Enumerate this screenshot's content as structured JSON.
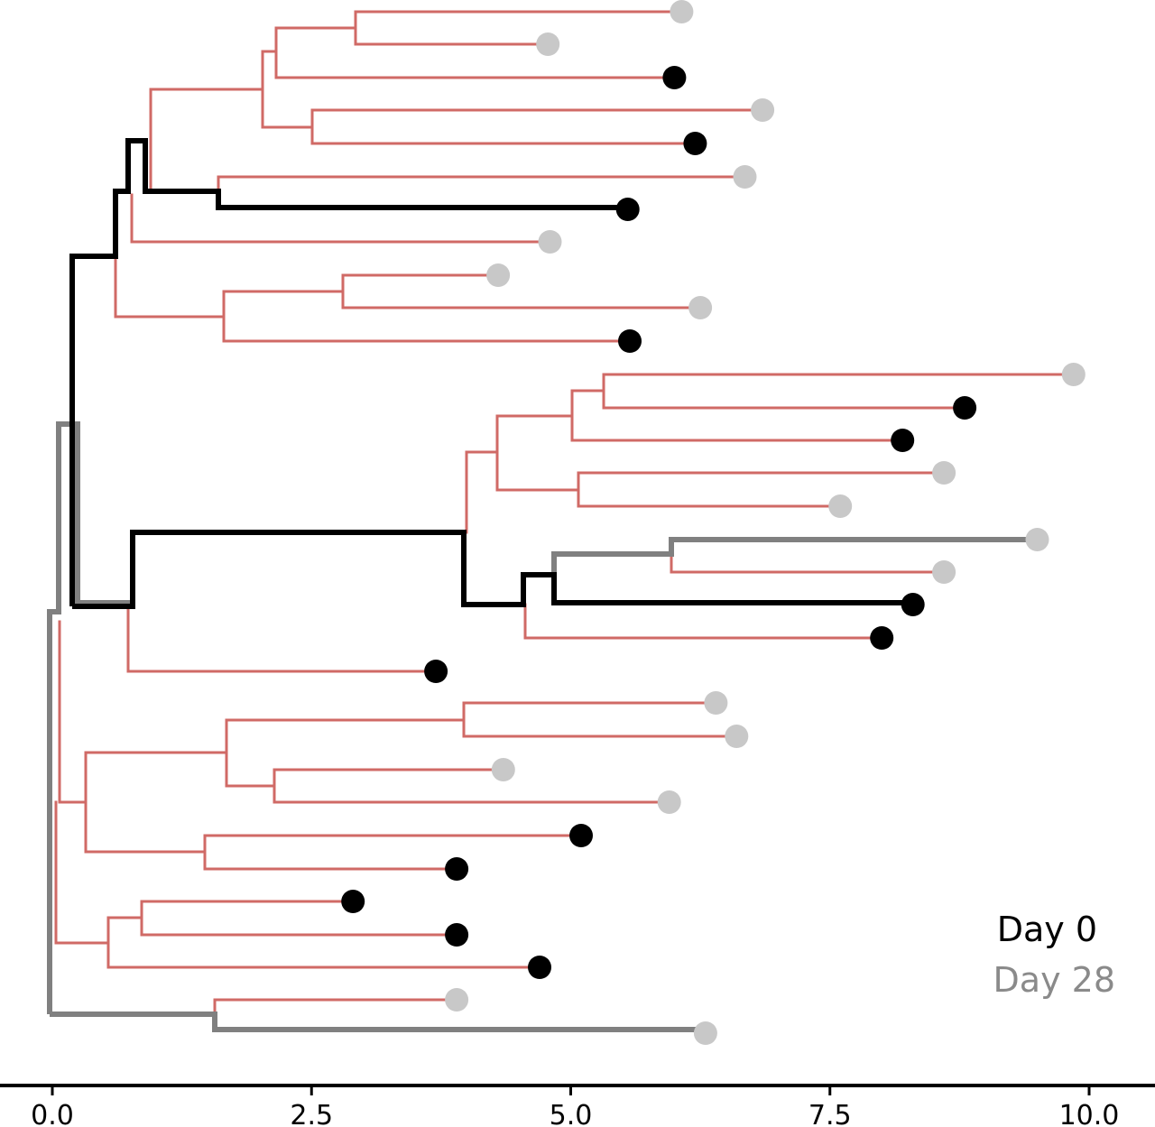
{
  "colors": {
    "branch": "#d06a66",
    "highlight_day0": "#000000",
    "highlight_day28": "#808080",
    "dot_day0": "#000000",
    "dot_day28": "#c8c8c8",
    "legend_day0": "#000000",
    "legend_day28": "#8a8a8a"
  },
  "axis": {
    "min": 0.0,
    "max": 10.0,
    "ticks": [
      {
        "value": 0.0,
        "label": "0.0"
      },
      {
        "value": 2.5,
        "label": "2.5"
      },
      {
        "value": 5.0,
        "label": "5.0"
      },
      {
        "value": 7.5,
        "label": "7.5"
      },
      {
        "value": 10.0,
        "label": "10.0"
      }
    ]
  },
  "legend": {
    "day0": "Day 0",
    "day28": "Day 28"
  },
  "chart_data": {
    "type": "phylogenetic-tree",
    "x_range": [
      0,
      10
    ],
    "tips": [
      {
        "id": 1,
        "x": 6.07,
        "day": "Day 28"
      },
      {
        "id": 2,
        "x": 4.78,
        "day": "Day 28"
      },
      {
        "id": 3,
        "x": 6.0,
        "day": "Day 0"
      },
      {
        "id": 4,
        "x": 6.85,
        "day": "Day 28"
      },
      {
        "id": 5,
        "x": 6.2,
        "day": "Day 0"
      },
      {
        "id": 6,
        "x": 6.68,
        "day": "Day 28"
      },
      {
        "id": 7,
        "x": 5.55,
        "day": "Day 0"
      },
      {
        "id": 8,
        "x": 4.8,
        "day": "Day 28"
      },
      {
        "id": 9,
        "x": 4.3,
        "day": "Day 28"
      },
      {
        "id": 10,
        "x": 6.25,
        "day": "Day 28"
      },
      {
        "id": 11,
        "x": 5.57,
        "day": "Day 0"
      },
      {
        "id": 12,
        "x": 9.85,
        "day": "Day 28"
      },
      {
        "id": 13,
        "x": 8.8,
        "day": "Day 0"
      },
      {
        "id": 14,
        "x": 8.2,
        "day": "Day 0"
      },
      {
        "id": 15,
        "x": 8.6,
        "day": "Day 28"
      },
      {
        "id": 16,
        "x": 7.6,
        "day": "Day 28"
      },
      {
        "id": 17,
        "x": 9.5,
        "day": "Day 28"
      },
      {
        "id": 18,
        "x": 8.6,
        "day": "Day 28"
      },
      {
        "id": 19,
        "x": 8.3,
        "day": "Day 0"
      },
      {
        "id": 20,
        "x": 8.0,
        "day": "Day 0"
      },
      {
        "id": 21,
        "x": 3.7,
        "day": "Day 0"
      },
      {
        "id": 22,
        "x": 6.4,
        "day": "Day 28"
      },
      {
        "id": 23,
        "x": 6.6,
        "day": "Day 28"
      },
      {
        "id": 24,
        "x": 4.35,
        "day": "Day 28"
      },
      {
        "id": 25,
        "x": 5.95,
        "day": "Day 28"
      },
      {
        "id": 26,
        "x": 5.1,
        "day": "Day 0"
      },
      {
        "id": 27,
        "x": 3.9,
        "day": "Day 0"
      },
      {
        "id": 28,
        "x": 2.9,
        "day": "Day 0"
      },
      {
        "id": 29,
        "x": 3.9,
        "day": "Day 0"
      },
      {
        "id": 30,
        "x": 4.7,
        "day": "Day 0"
      },
      {
        "id": 31,
        "x": 3.9,
        "day": "Day 28"
      },
      {
        "id": 32,
        "x": 6.3,
        "day": "Day 28"
      }
    ]
  }
}
